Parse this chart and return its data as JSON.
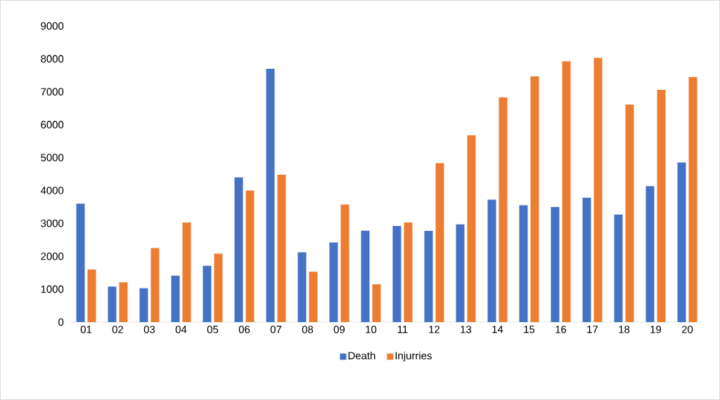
{
  "chart_data": {
    "type": "bar",
    "categories": [
      "01",
      "02",
      "03",
      "04",
      "05",
      "06",
      "07",
      "08",
      "09",
      "10",
      "11",
      "12",
      "13",
      "14",
      "15",
      "16",
      "17",
      "18",
      "19",
      "20"
    ],
    "series": [
      {
        "name": "Death",
        "color": "#4472c4",
        "values": [
          3600,
          1080,
          1030,
          1410,
          1710,
          4400,
          7700,
          2120,
          2420,
          2780,
          2920,
          2770,
          2970,
          3720,
          3550,
          3500,
          3780,
          3270,
          4130,
          4850
        ]
      },
      {
        "name": "Injurries",
        "color": "#ed7d31",
        "values": [
          1600,
          1210,
          2250,
          3030,
          2080,
          4000,
          4480,
          1530,
          3570,
          1150,
          3030,
          4830,
          5680,
          6830,
          7470,
          7930,
          8030,
          6610,
          7060,
          7450
        ]
      }
    ],
    "ylim": [
      0,
      9000
    ],
    "yticks": [
      0,
      1000,
      2000,
      3000,
      4000,
      5000,
      6000,
      7000,
      8000,
      9000
    ],
    "legend": "bottom"
  }
}
